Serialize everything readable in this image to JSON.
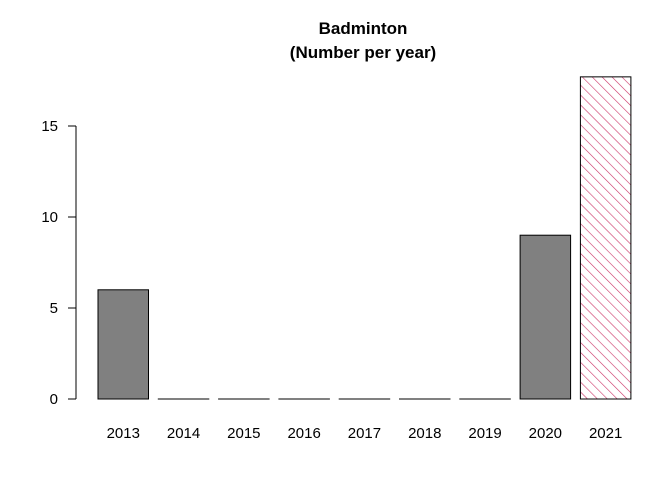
{
  "chart_data": {
    "type": "bar",
    "title": "Badminton",
    "subtitle": "(Number per year)",
    "xlabel": "",
    "ylabel": "",
    "categories": [
      "2013",
      "2014",
      "2015",
      "2016",
      "2017",
      "2018",
      "2019",
      "2020",
      "2021"
    ],
    "values": [
      6,
      0,
      0,
      0,
      0,
      0,
      0,
      9,
      17.7
    ],
    "bar_styles": [
      "solid",
      "solid",
      "solid",
      "solid",
      "solid",
      "solid",
      "solid",
      "solid",
      "hatched"
    ],
    "ylim": [
      0,
      18
    ],
    "yticks": [
      0,
      5,
      10,
      15
    ],
    "grid": false,
    "legend": "none",
    "colors": {
      "bar_fill": "#808080",
      "bar_stroke": "#000000",
      "hatch": "#cc3366",
      "axis": "#000000"
    }
  }
}
